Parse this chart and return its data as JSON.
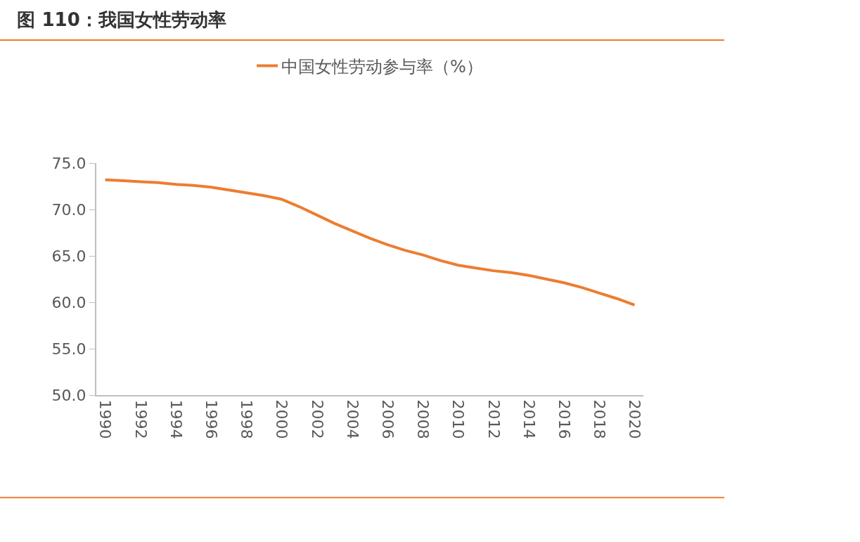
{
  "chart_data": {
    "type": "line",
    "title": "图 110：我国女性劳动率",
    "categories": [
      "1990",
      null,
      "1992",
      null,
      "1994",
      null,
      "1996",
      null,
      "1998",
      null,
      "2000",
      null,
      "2002",
      null,
      "2004",
      null,
      "2006",
      null,
      "2008",
      null,
      "2010",
      null,
      "2012",
      null,
      "2014",
      null,
      "2016",
      null,
      "2018",
      null,
      "2020"
    ],
    "series": [
      {
        "name": "中国女性劳动参与率（%）",
        "color": "#ed7d31",
        "values": [
          73.2,
          73.1,
          73.0,
          72.9,
          72.7,
          72.6,
          72.4,
          72.1,
          71.8,
          71.5,
          71.1,
          70.3,
          69.4,
          68.5,
          67.7,
          66.9,
          66.2,
          65.6,
          65.1,
          64.5,
          64.0,
          63.7,
          63.4,
          63.2,
          62.9,
          62.5,
          62.1,
          61.6,
          61.0,
          60.4,
          59.7
        ]
      }
    ],
    "ylim": [
      50,
      75
    ],
    "yticks": [
      {
        "value": 50,
        "label": "50.0"
      },
      {
        "value": 55,
        "label": "55.0"
      },
      {
        "value": 60,
        "label": "60.0"
      },
      {
        "value": 65,
        "label": "65.0"
      },
      {
        "value": 70,
        "label": "70.0"
      },
      {
        "value": 75,
        "label": "75.0"
      }
    ],
    "legend": "top",
    "marker": "none",
    "line_style": "solid"
  }
}
